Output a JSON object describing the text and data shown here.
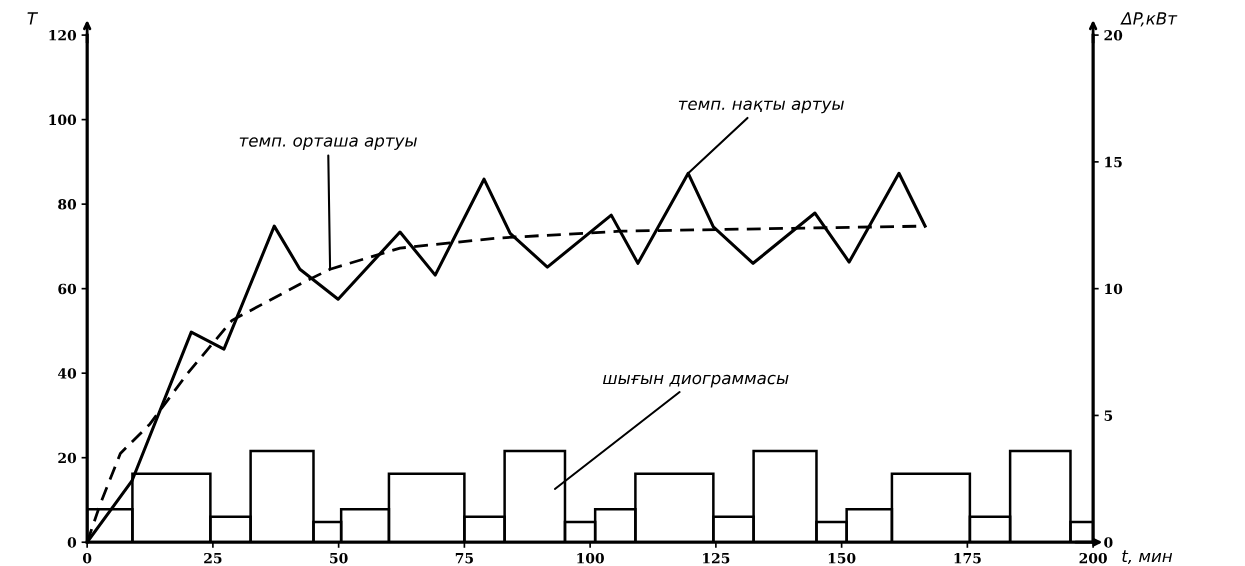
{
  "chart_data": {
    "type": "line",
    "xlabel": "t, мин",
    "ylabel": "T",
    "y2label": "ΔP,кВт",
    "xlim": [
      0,
      200
    ],
    "xticks": [
      0,
      25,
      50,
      75,
      100,
      125,
      150,
      175,
      200
    ],
    "ylim": [
      0,
      120
    ],
    "yticks": [
      0,
      20,
      40,
      60,
      80,
      100,
      120
    ],
    "y2lim": [
      0,
      20
    ],
    "y2ticks": [
      0,
      5,
      10,
      15,
      20
    ],
    "grid": false,
    "legend": false,
    "marker": "none",
    "series": [
      {
        "type": "histogram",
        "axis": "y2",
        "color": "#000000",
        "bins": [
          0,
          9,
          24.5,
          32.5,
          45,
          50.5,
          60,
          75,
          83,
          95,
          101,
          109,
          124.5,
          132.5,
          145,
          151,
          160,
          175.5,
          183.5,
          195.5,
          200
        ],
        "values": [
          1.3,
          2.7,
          1.0,
          3.6,
          0.8,
          1.3,
          2.7,
          1.0,
          3.6,
          0.8,
          1.3,
          2.7,
          1.0,
          3.6,
          0.8,
          1.3,
          2.7,
          1.0,
          3.6,
          0.8
        ]
      },
      {
        "line_style": "dashed",
        "color": "#000000",
        "x": [
          0,
          2.6,
          6.6,
          12.5,
          20,
          28.8,
          43,
          48.3,
          62.2,
          82,
          106,
          166.6
        ],
        "values": [
          0,
          9,
          21,
          28,
          40,
          52.5,
          61.5,
          64.6,
          69.6,
          72,
          73.6,
          74.8
        ]
      },
      {
        "line_style": "solid",
        "color": "#000000",
        "x": [
          0,
          8.9,
          20.7,
          27.2,
          37.2,
          42.3,
          49.9,
          62.2,
          69.2,
          78.9,
          84.1,
          91.5,
          104.2,
          109.5,
          119.5,
          124.5,
          132.4,
          144.7,
          151.5,
          161.4,
          166.6
        ],
        "values": [
          0,
          14.5,
          49.7,
          45.7,
          74.8,
          64.6,
          57.5,
          73.4,
          63.2,
          85.9,
          73.1,
          65.1,
          77.4,
          66.0,
          87.3,
          74.6,
          66.0,
          77.9,
          66.3,
          87.3,
          74.8
        ]
      }
    ],
    "annotations": [
      {
        "text": "темп. орташа артуы",
        "x": 48.3,
        "y": 64.6
      },
      {
        "text": "темп. нақты артуы",
        "x": 119.5,
        "y": 87.3
      },
      "шығын диограммасы"
    ]
  }
}
